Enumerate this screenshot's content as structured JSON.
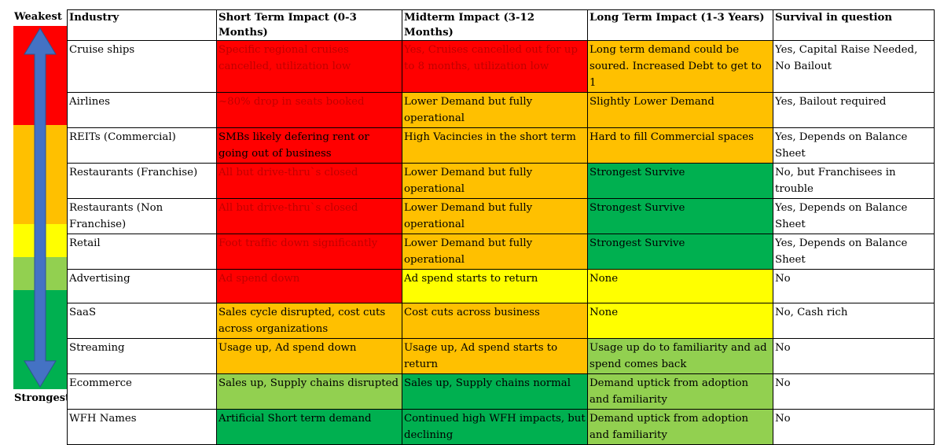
{
  "scale": {
    "top_label": "Weakest",
    "bottom_label": "Strongest",
    "bands": [
      {
        "name": "weak",
        "color": "#ff0000",
        "rows": 3
      },
      {
        "name": "moderate",
        "color": "#ffc000",
        "rows": 3
      },
      {
        "name": "neutral",
        "color": "#ffff00",
        "rows": 1
      },
      {
        "name": "fair",
        "color": "#92d050",
        "rows": 1
      },
      {
        "name": "strong",
        "color": "#00b050",
        "rows": 3
      }
    ],
    "arrow_color": "#4472c4"
  },
  "table": {
    "headers": [
      "Industry",
      "Short Term Impact (0-3 Months)",
      "Midterm Impact (3-12 Months)",
      "Long Term Impact (1-3 Years)",
      "Survival in question"
    ],
    "rows": [
      {
        "industry": "Cruise ships",
        "short": {
          "text": "Specific regional cruises cancelled, utilization low",
          "color": "red-dim"
        },
        "mid": {
          "text": "Yes, Cruises cancelled out for up to 8 months, utilization low",
          "color": "red-dim"
        },
        "long": {
          "text": "Long term demand could be soured.  Increased Debt to get to 1",
          "color": "orange"
        },
        "survival": "Yes, Capital Raise Needed, No Bailout"
      },
      {
        "industry": "Airlines",
        "short": {
          "text": "~80% drop in seats booked",
          "color": "red-dim"
        },
        "mid": {
          "text": "Lower Demand but fully operational",
          "color": "orange"
        },
        "long": {
          "text": "Slightly Lower Demand",
          "color": "orange"
        },
        "survival": "Yes, Bailout required"
      },
      {
        "industry": "REITs (Commercial)",
        "short": {
          "text": "SMBs likely defering rent or going out of business",
          "color": "red"
        },
        "mid": {
          "text": "High Vacincies in the short term",
          "color": "orange"
        },
        "long": {
          "text": "Hard to fill Commercial spaces",
          "color": "orange"
        },
        "survival": "Yes, Depends on Balance Sheet"
      },
      {
        "industry": "Restaurants (Franchise)",
        "short": {
          "text": "All but drive-thru`s closed",
          "color": "red-dim"
        },
        "mid": {
          "text": "Lower Demand but fully operational",
          "color": "orange"
        },
        "long": {
          "text": "Strongest Survive",
          "color": "dgreen"
        },
        "survival": "No, but Franchisees in trouble"
      },
      {
        "industry": "Restaurants (Non Franchise)",
        "short": {
          "text": "All but drive-thru`s closed",
          "color": "red-dim"
        },
        "mid": {
          "text": "Lower Demand but fully operational",
          "color": "orange"
        },
        "long": {
          "text": "Strongest Survive",
          "color": "dgreen"
        },
        "survival": "Yes, Depends on Balance Sheet"
      },
      {
        "industry": "Retail",
        "short": {
          "text": "Foot traffic down significantly",
          "color": "red-dim"
        },
        "mid": {
          "text": "Lower Demand but fully operational",
          "color": "orange"
        },
        "long": {
          "text": "Strongest Survive",
          "color": "dgreen"
        },
        "survival": "Yes, Depends on Balance Sheet"
      },
      {
        "industry": "Advertising",
        "short": {
          "text": "Ad spend down",
          "color": "red-dim"
        },
        "mid": {
          "text": "Ad spend starts to return",
          "color": "yellow"
        },
        "long": {
          "text": "None",
          "color": "yellow"
        },
        "survival": "No"
      },
      {
        "industry": "SaaS",
        "short": {
          "text": "Sales cycle disrupted, cost cuts across organizations",
          "color": "orange"
        },
        "mid": {
          "text": "Cost cuts across business",
          "color": "orange"
        },
        "long": {
          "text": "None",
          "color": "yellow"
        },
        "survival": "No, Cash rich"
      },
      {
        "industry": "Streaming",
        "short": {
          "text": "Usage up, Ad spend down",
          "color": "orange"
        },
        "mid": {
          "text": "Usage up, Ad spend starts to return",
          "color": "orange"
        },
        "long": {
          "text": "Usage up do to familiarity and ad spend comes back",
          "color": "lgreen"
        },
        "survival": "No"
      },
      {
        "industry": "Ecommerce",
        "short": {
          "text": "Sales up, Supply chains disrupted",
          "color": "lgreen"
        },
        "mid": {
          "text": "Sales up, Supply chains normal",
          "color": "dgreen"
        },
        "long": {
          "text": "Demand uptick from adoption and familiarity",
          "color": "lgreen"
        },
        "survival": "No"
      },
      {
        "industry": "WFH Names",
        "short": {
          "text": "Artificial Short term demand",
          "color": "dgreen"
        },
        "mid": {
          "text": "Continued high WFH impacts, but declining",
          "color": "dgreen"
        },
        "long": {
          "text": "Demand uptick from adoption and familiarity",
          "color": "lgreen"
        },
        "survival": "No"
      }
    ]
  }
}
